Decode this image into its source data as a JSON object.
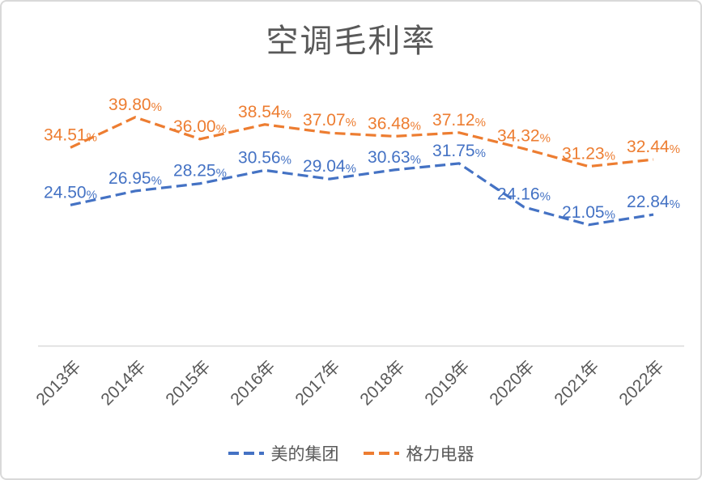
{
  "chart_data": {
    "type": "line",
    "title": "空调毛利率",
    "categories": [
      "2013年",
      "2014年",
      "2015年",
      "2016年",
      "2017年",
      "2018年",
      "2019年",
      "2020年",
      "2021年",
      "2022年"
    ],
    "series": [
      {
        "name": "美的集团",
        "color": "#4472C4",
        "values": [
          24.5,
          26.95,
          28.25,
          30.56,
          29.04,
          30.63,
          31.75,
          24.16,
          21.05,
          22.84
        ]
      },
      {
        "name": "格力电器",
        "color": "#ED7D31",
        "values": [
          34.51,
          39.8,
          36.0,
          38.54,
          37.07,
          36.48,
          37.12,
          34.32,
          31.23,
          32.44
        ]
      }
    ],
    "data_label_format": "0.00%",
    "ylim": [
      0,
      45
    ],
    "grid": false,
    "line_style": "dashed",
    "legend_position": "bottom",
    "text_color": "#595959",
    "axis_line_color": "#D9D9D9"
  }
}
